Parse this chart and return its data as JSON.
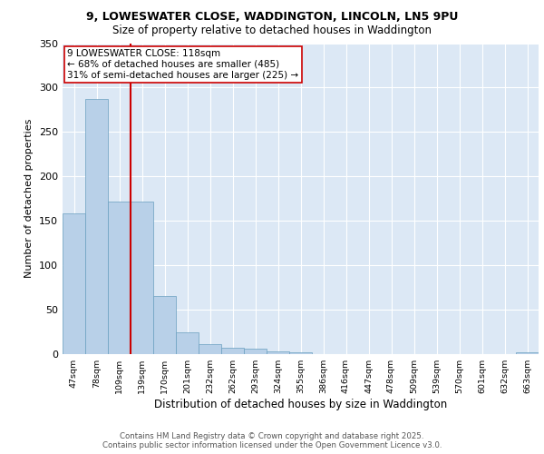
{
  "title_line1": "9, LOWESWATER CLOSE, WADDINGTON, LINCOLN, LN5 9PU",
  "title_line2": "Size of property relative to detached houses in Waddington",
  "xlabel": "Distribution of detached houses by size in Waddington",
  "ylabel": "Number of detached properties",
  "categories": [
    "47sqm",
    "78sqm",
    "109sqm",
    "139sqm",
    "170sqm",
    "201sqm",
    "232sqm",
    "262sqm",
    "293sqm",
    "324sqm",
    "355sqm",
    "386sqm",
    "416sqm",
    "447sqm",
    "478sqm",
    "509sqm",
    "539sqm",
    "570sqm",
    "601sqm",
    "632sqm",
    "663sqm"
  ],
  "values": [
    158,
    287,
    172,
    172,
    65,
    25,
    11,
    7,
    6,
    3,
    2,
    0,
    0,
    0,
    0,
    0,
    0,
    0,
    0,
    0,
    2
  ],
  "bar_color": "#b8d0e8",
  "bar_edge_color": "#6a9fc0",
  "vline_color": "#cc0000",
  "vline_pos": 2.5,
  "annotation_text": "9 LOWESWATER CLOSE: 118sqm\n← 68% of detached houses are smaller (485)\n31% of semi-detached houses are larger (225) →",
  "annotation_box_facecolor": "white",
  "annotation_box_edgecolor": "#cc0000",
  "ylim": [
    0,
    350
  ],
  "yticks": [
    0,
    50,
    100,
    150,
    200,
    250,
    300,
    350
  ],
  "background_color": "#dce8f5",
  "grid_color": "white",
  "footer_line1": "Contains HM Land Registry data © Crown copyright and database right 2025.",
  "footer_line2": "Contains public sector information licensed under the Open Government Licence v3.0."
}
